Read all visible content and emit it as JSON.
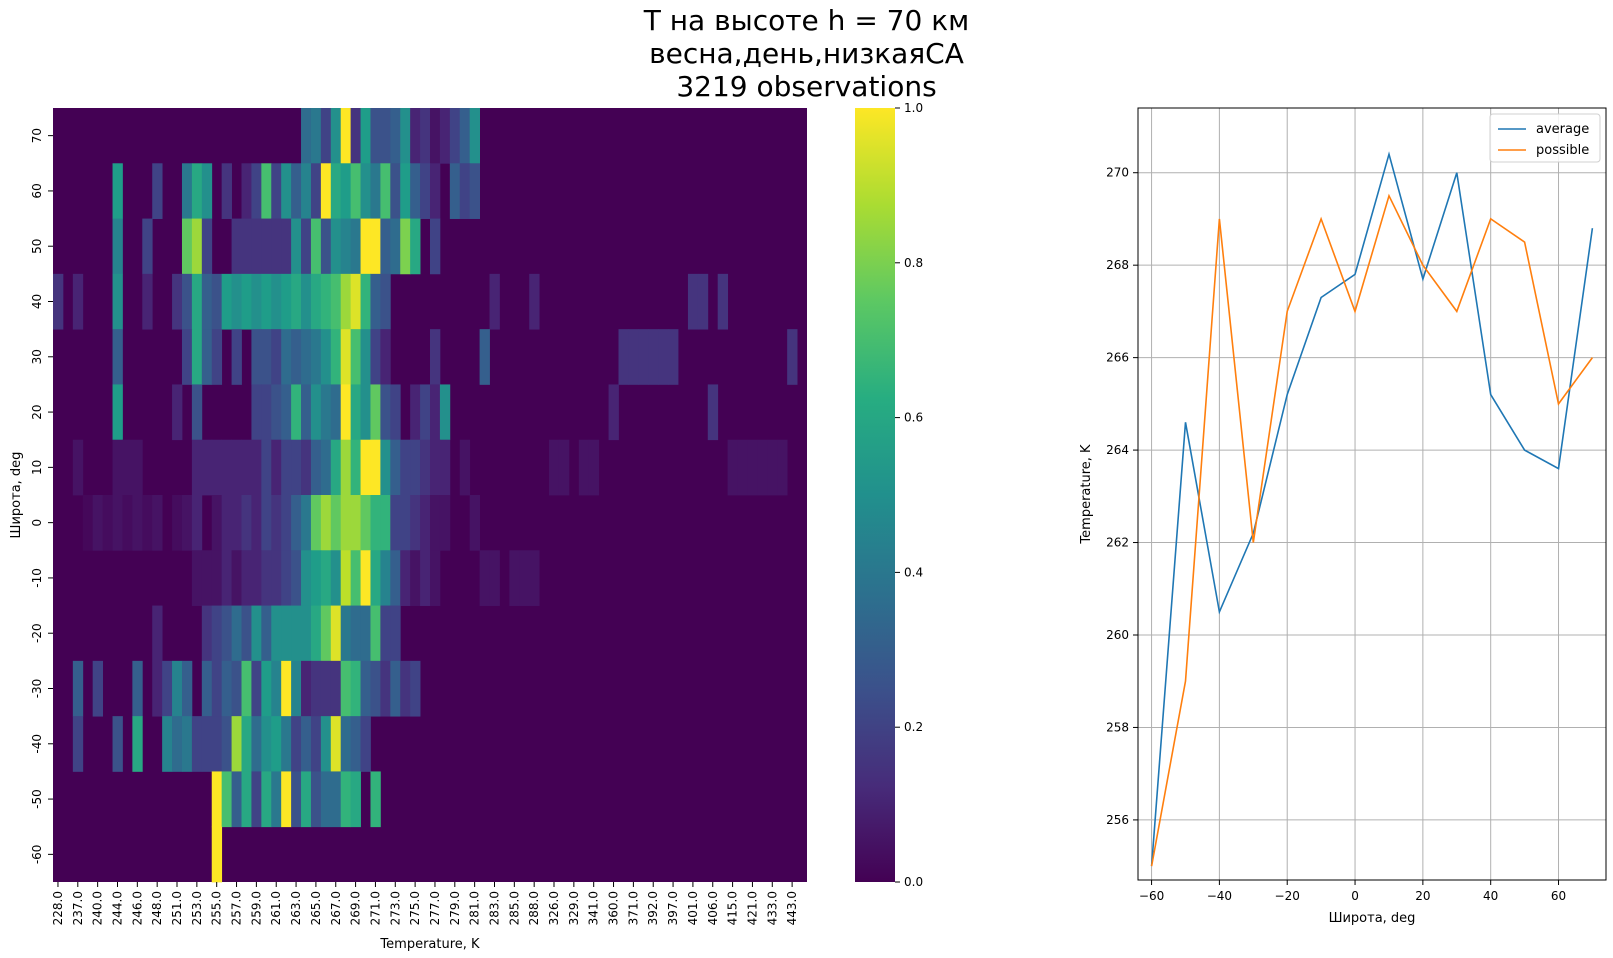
{
  "title_lines": [
    "T на высоте h = 70 км",
    "весна,день,низкаяСА",
    "3219 observations"
  ],
  "chart_data": [
    {
      "type": "heatmap",
      "xlabel": "Temperature, K",
      "ylabel": "Широта, deg",
      "x_tick_labels": [
        "228.0",
        "237.0",
        "240.0",
        "244.0",
        "246.0",
        "248.0",
        "251.0",
        "253.0",
        "255.0",
        "257.0",
        "259.0",
        "261.0",
        "263.0",
        "265.0",
        "267.0",
        "269.0",
        "271.0",
        "273.0",
        "275.0",
        "277.0",
        "279.0",
        "281.0",
        "283.0",
        "285.0",
        "288.0",
        "326.0",
        "329.0",
        "341.0",
        "360.0",
        "371.0",
        "392.0",
        "397.0",
        "401.0",
        "406.0",
        "415.0",
        "421.0",
        "433.0",
        "443.0"
      ],
      "n_columns": 76,
      "y_tick_labels": [
        "70",
        "60",
        "50",
        "40",
        "30",
        "20",
        "10",
        "0",
        "-10",
        "-20",
        "-30",
        "-40",
        "-50",
        "-60"
      ],
      "colorscale": "viridis",
      "colorbar_range": [
        0,
        1
      ],
      "colorbar_ticks": [
        "0.0",
        "0.2",
        "0.4",
        "0.6",
        "0.8",
        "1.0"
      ],
      "rows": [
        {
          "lat": "70",
          "cells": {
            "25": 0.35,
            "26": 0.4,
            "27": 0.2,
            "28": 0.5,
            "29": 1.0,
            "30": 0.15,
            "31": 0.55,
            "32": 0.25,
            "33": 0.25,
            "34": 0.3,
            "35": 0.5,
            "36": 0.1,
            "37": 0.15,
            "38": 0.05,
            "39": 0.1,
            "40": 0.2,
            "41": 0.3,
            "42": 0.5
          }
        },
        {
          "lat": "60",
          "cells": {
            "6": 0.55,
            "10": 0.2,
            "13": 0.4,
            "14": 0.6,
            "15": 0.5,
            "17": 0.15,
            "19": 0.1,
            "20": 0.2,
            "21": 0.7,
            "22": 0.2,
            "23": 0.5,
            "24": 0.3,
            "25": 0.45,
            "26": 0.2,
            "27": 1.0,
            "28": 0.6,
            "29": 0.55,
            "30": 0.7,
            "31": 0.5,
            "32": 0.4,
            "33": 0.7,
            "34": 0.25,
            "35": 0.55,
            "36": 0.3,
            "37": 0.2,
            "38": 0.1,
            "40": 0.3,
            "41": 0.2,
            "42": 0.25
          }
        },
        {
          "lat": "50",
          "cells": {
            "6": 0.45,
            "9": 0.2,
            "13": 0.75,
            "14": 0.85,
            "15": 0.2,
            "18": 0.15,
            "19": 0.15,
            "20": 0.15,
            "21": 0.15,
            "22": 0.15,
            "23": 0.15,
            "24": 0.5,
            "25": 0.2,
            "26": 0.7,
            "27": 0.25,
            "28": 0.5,
            "29": 0.45,
            "30": 0.4,
            "31": 1.0,
            "32": 1.0,
            "33": 0.3,
            "34": 0.35,
            "35": 0.8,
            "36": 0.6,
            "38": 0.2
          }
        },
        {
          "lat": "40",
          "cells": {
            "0": 0.15,
            "2": 0.1,
            "6": 0.5,
            "9": 0.1,
            "12": 0.15,
            "13": 0.25,
            "14": 0.6,
            "15": 0.3,
            "16": 0.25,
            "17": 0.55,
            "18": 0.5,
            "19": 0.55,
            "20": 0.5,
            "21": 0.55,
            "22": 0.5,
            "23": 0.55,
            "24": 0.6,
            "25": 0.5,
            "26": 0.6,
            "27": 0.65,
            "28": 0.7,
            "29": 0.85,
            "30": 0.95,
            "31": 0.65,
            "32": 0.3,
            "33": 0.25,
            "44": 0.1,
            "48": 0.1,
            "64": 0.15,
            "65": 0.15,
            "67": 0.15
          }
        },
        {
          "lat": "30",
          "cells": {
            "6": 0.3,
            "13": 0.2,
            "14": 0.6,
            "15": 0.3,
            "16": 0.2,
            "18": 0.2,
            "20": 0.25,
            "21": 0.25,
            "22": 0.2,
            "23": 0.35,
            "24": 0.3,
            "25": 0.35,
            "26": 0.4,
            "27": 0.5,
            "28": 0.65,
            "29": 0.95,
            "30": 0.7,
            "31": 0.5,
            "32": 0.2,
            "33": 0.1,
            "38": 0.15,
            "43": 0.3,
            "57": 0.15,
            "58": 0.15,
            "59": 0.15,
            "60": 0.15,
            "61": 0.15,
            "62": 0.15,
            "74": 0.15
          }
        },
        {
          "lat": "20",
          "cells": {
            "6": 0.55,
            "12": 0.1,
            "14": 0.25,
            "20": 0.2,
            "21": 0.2,
            "22": 0.25,
            "23": 0.3,
            "24": 0.65,
            "25": 0.3,
            "26": 0.5,
            "27": 0.4,
            "28": 0.35,
            "29": 1.0,
            "30": 0.6,
            "31": 0.5,
            "32": 0.75,
            "33": 0.25,
            "34": 0.2,
            "36": 0.1,
            "37": 0.2,
            "38": 0.1,
            "39": 0.5,
            "56": 0.1,
            "66": 0.15
          }
        },
        {
          "lat": "10",
          "cells": {
            "2": 0.05,
            "6": 0.05,
            "7": 0.05,
            "8": 0.05,
            "14": 0.1,
            "15": 0.1,
            "16": 0.1,
            "17": 0.1,
            "18": 0.1,
            "19": 0.1,
            "20": 0.1,
            "21": 0.2,
            "22": 0.1,
            "23": 0.2,
            "24": 0.2,
            "25": 0.15,
            "26": 0.3,
            "27": 0.35,
            "28": 0.6,
            "29": 0.85,
            "30": 0.65,
            "31": 1.0,
            "32": 1.0,
            "33": 0.5,
            "34": 0.3,
            "35": 0.2,
            "36": 0.2,
            "37": 0.15,
            "38": 0.1,
            "39": 0.1,
            "41": 0.05,
            "50": 0.05,
            "51": 0.05,
            "53": 0.05,
            "54": 0.05,
            "68": 0.05,
            "69": 0.05,
            "70": 0.05,
            "71": 0.05,
            "72": 0.05,
            "73": 0.05
          }
        },
        {
          "lat": "0",
          "cells": {
            "3": 0.02,
            "4": 0.05,
            "5": 0.03,
            "6": 0.05,
            "7": 0.03,
            "8": 0.05,
            "9": 0.03,
            "10": 0.05,
            "12": 0.03,
            "13": 0.05,
            "14": 0.1,
            "16": 0.05,
            "17": 0.1,
            "18": 0.1,
            "19": 0.15,
            "20": 0.1,
            "21": 0.2,
            "22": 0.15,
            "23": 0.2,
            "24": 0.3,
            "25": 0.4,
            "26": 0.75,
            "27": 0.85,
            "28": 0.75,
            "29": 0.85,
            "30": 0.85,
            "31": 0.75,
            "32": 0.65,
            "33": 0.65,
            "34": 0.2,
            "35": 0.2,
            "36": 0.15,
            "37": 0.1,
            "38": 0.05,
            "39": 0.05,
            "42": 0.05
          }
        },
        {
          "lat": "-10",
          "cells": {
            "14": 0.05,
            "15": 0.05,
            "16": 0.05,
            "17": 0.1,
            "18": 0.05,
            "19": 0.1,
            "20": 0.1,
            "21": 0.15,
            "22": 0.15,
            "23": 0.2,
            "24": 0.25,
            "25": 0.5,
            "26": 0.55,
            "27": 0.6,
            "28": 0.5,
            "29": 0.9,
            "30": 0.7,
            "31": 1.0,
            "32": 0.6,
            "33": 0.45,
            "34": 0.3,
            "35": 0.1,
            "36": 0.05,
            "37": 0.1,
            "38": 0.05,
            "43": 0.05,
            "44": 0.05,
            "46": 0.05,
            "47": 0.05,
            "48": 0.05
          }
        },
        {
          "lat": "-20",
          "cells": {
            "10": 0.1,
            "15": 0.15,
            "16": 0.2,
            "17": 0.25,
            "18": 0.35,
            "19": 0.25,
            "20": 0.5,
            "21": 0.3,
            "22": 0.5,
            "23": 0.5,
            "24": 0.5,
            "25": 0.5,
            "26": 0.6,
            "27": 0.75,
            "28": 0.95,
            "29": 0.4,
            "30": 0.35,
            "31": 0.35,
            "32": 0.7,
            "33": 0.2,
            "34": 0.2
          }
        },
        {
          "lat": "-30",
          "cells": {
            "2": 0.3,
            "4": 0.2,
            "8": 0.3,
            "10": 0.1,
            "11": 0.2,
            "12": 0.45,
            "13": 0.3,
            "15": 0.3,
            "16": 0.2,
            "17": 0.3,
            "18": 0.25,
            "19": 0.7,
            "20": 0.2,
            "21": 0.55,
            "22": 0.45,
            "23": 1.0,
            "24": 0.45,
            "25": 0.1,
            "26": 0.15,
            "27": 0.15,
            "28": 0.15,
            "29": 0.7,
            "30": 0.65,
            "31": 0.3,
            "32": 0.25,
            "33": 0.15,
            "34": 0.3,
            "35": 0.15,
            "36": 0.2
          }
        },
        {
          "lat": "-40",
          "cells": {
            "2": 0.2,
            "6": 0.25,
            "8": 0.6,
            "11": 0.45,
            "12": 0.35,
            "13": 0.4,
            "14": 0.2,
            "15": 0.2,
            "16": 0.2,
            "17": 0.25,
            "18": 0.85,
            "19": 0.6,
            "20": 0.35,
            "21": 0.5,
            "22": 0.55,
            "23": 0.4,
            "24": 0.2,
            "25": 0.3,
            "26": 0.2,
            "27": 0.5,
            "28": 0.95,
            "29": 0.35,
            "30": 0.3,
            "31": 0.2
          }
        },
        {
          "lat": "-50",
          "cells": {
            "16": 1.0,
            "17": 0.7,
            "18": 0.3,
            "19": 0.6,
            "20": 0.2,
            "21": 0.6,
            "22": 0.4,
            "23": 1.0,
            "24": 0.25,
            "25": 0.6,
            "26": 0.25,
            "27": 0.35,
            "28": 0.35,
            "29": 0.65,
            "30": 0.6,
            "32": 0.65
          }
        },
        {
          "lat": "-60",
          "cells": {
            "16": 1.0
          }
        }
      ]
    },
    {
      "type": "line",
      "xlabel": "Широта, deg",
      "ylabel": "Temperature, K",
      "xlim": [
        -64,
        74
      ],
      "ylim": [
        254.7,
        271.4
      ],
      "x_ticks": [
        -60,
        -40,
        -20,
        0,
        20,
        40,
        60
      ],
      "y_ticks": [
        256,
        258,
        260,
        262,
        264,
        266,
        268,
        270
      ],
      "grid": true,
      "legend_position": "top-right",
      "x": [
        -60,
        -50,
        -40,
        -30,
        -20,
        -10,
        0,
        10,
        20,
        30,
        40,
        50,
        60,
        70
      ],
      "series": [
        {
          "name": "average",
          "color": "#1f77b4",
          "values": [
            255.0,
            264.6,
            260.5,
            262.2,
            265.2,
            267.3,
            267.8,
            270.4,
            267.7,
            270.0,
            265.2,
            264.0,
            263.6,
            268.8
          ]
        },
        {
          "name": "possible",
          "color": "#ff7f0e",
          "values": [
            255.0,
            259.0,
            269.0,
            262.0,
            267.0,
            269.0,
            267.0,
            269.5,
            268.0,
            267.0,
            269.0,
            268.5,
            265.0,
            266.0
          ]
        }
      ]
    }
  ]
}
